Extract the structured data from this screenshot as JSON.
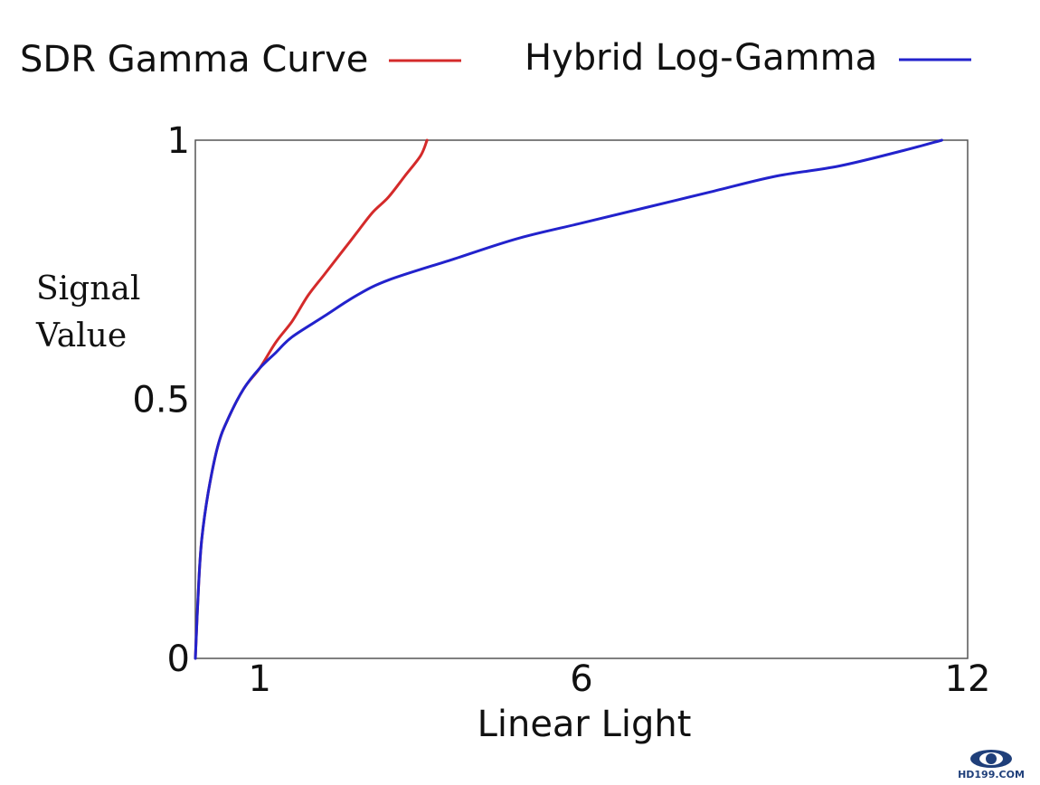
{
  "chart_data": {
    "type": "line",
    "title": "",
    "xlabel": "Linear Light",
    "ylabel_lines": [
      "Signal",
      "Value"
    ],
    "xlim": [
      0,
      12
    ],
    "ylim": [
      0,
      1
    ],
    "x_ticks": [
      1,
      6,
      12
    ],
    "y_ticks": [
      0,
      0.5,
      1
    ],
    "y_tick_labels": [
      "0",
      "0.5",
      "1"
    ],
    "grid": false,
    "legend_position": "top",
    "series": [
      {
        "name": "SDR Gamma Curve",
        "color": "#d42a2a",
        "x": [
          0,
          0.05,
          0.1,
          0.2,
          0.35,
          0.5,
          0.75,
          1.0,
          1.25,
          1.5,
          1.75,
          2.0,
          2.25,
          2.5,
          2.75,
          3.0,
          3.25,
          3.5,
          3.6
        ],
        "y": [
          0,
          0.14,
          0.23,
          0.32,
          0.41,
          0.46,
          0.52,
          0.56,
          0.61,
          0.65,
          0.7,
          0.74,
          0.78,
          0.82,
          0.86,
          0.89,
          0.93,
          0.97,
          1.0
        ]
      },
      {
        "name": "Hybrid Log-Gamma",
        "color": "#2222cc",
        "x": [
          0,
          0.05,
          0.1,
          0.2,
          0.35,
          0.5,
          0.75,
          1.0,
          1.25,
          1.5,
          2.0,
          2.5,
          3.0,
          4.0,
          5.0,
          6.0,
          7.0,
          8.0,
          9.0,
          10.0,
          11.0,
          11.6
        ],
        "y": [
          0,
          0.14,
          0.23,
          0.32,
          0.41,
          0.46,
          0.52,
          0.56,
          0.59,
          0.62,
          0.66,
          0.7,
          0.73,
          0.77,
          0.81,
          0.84,
          0.87,
          0.9,
          0.93,
          0.95,
          0.98,
          1.0
        ]
      }
    ]
  },
  "watermark": {
    "text": "HD199.COM",
    "color": "#1f3f7a"
  }
}
